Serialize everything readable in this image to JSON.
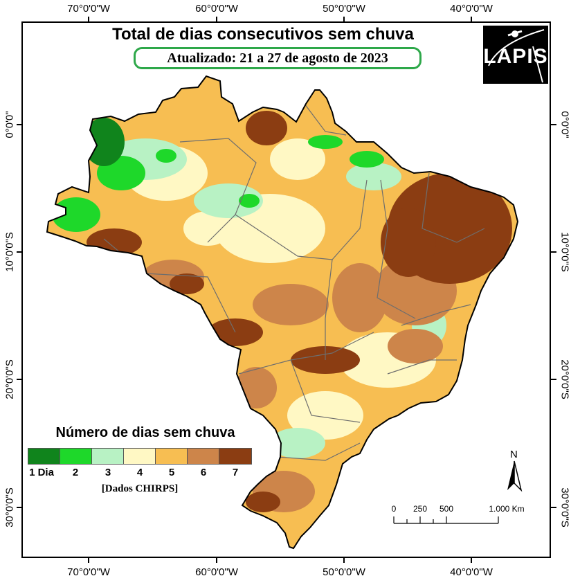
{
  "map": {
    "title": "Total de dias consecutivos sem chuva",
    "subtitle": "Atualizado: 21 a 27 de agosto de 2023",
    "logo_text": "LAPIS",
    "longitude_labels": [
      "70°0'0\"W",
      "60°0'0\"W",
      "50°0'0\"W",
      "40°0'0\"W"
    ],
    "latitude_labels": [
      "0°0'0\"",
      "10°0'0\"S",
      "20°0'0\"S",
      "30°0'0\"S"
    ]
  },
  "legend": {
    "title": "Número de dias sem chuva",
    "classes": [
      {
        "label": "1 Dia",
        "color": "#10841c"
      },
      {
        "label": "2",
        "color": "#1ed82a"
      },
      {
        "label": "3",
        "color": "#b8f2c4"
      },
      {
        "label": "4",
        "color": "#fff8c4"
      },
      {
        "label": "5",
        "color": "#f7be52"
      },
      {
        "label": "6",
        "color": "#cd854a"
      },
      {
        "label": "7",
        "color": "#8b3d12"
      }
    ],
    "source": "[Dados CHIRPS]"
  },
  "north_arrow": {
    "label": "N"
  },
  "scale_bar": {
    "labels": [
      "0",
      "250",
      "500",
      "1.000 Km"
    ]
  }
}
